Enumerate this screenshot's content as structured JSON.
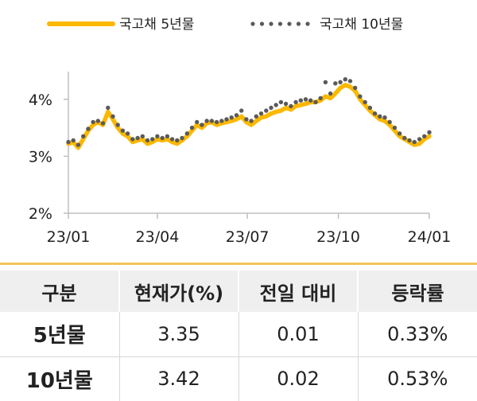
{
  "colors": {
    "series_5y": "#fbb800",
    "series_10y": "#5a5a5a",
    "axis": "#bfbfbf"
  },
  "chart_data": {
    "type": "line",
    "x_tick_labels": [
      "23/01",
      "23/04",
      "23/07",
      "23/10",
      "24/01"
    ],
    "x_tick_dates": [
      "2023-01-01",
      "2023-04-01",
      "2023-07-01",
      "2023-10-01",
      "2024-01-01"
    ],
    "y_tick_labels": [
      "2%",
      "3%",
      "4%"
    ],
    "ylim": [
      2,
      4.5
    ],
    "grid": false,
    "legend_position": "top",
    "series": [
      {
        "name": "국고채 5년물",
        "style": "solid-thick",
        "x": [
          "2023-01-01",
          "2023-01-06",
          "2023-01-11",
          "2023-01-16",
          "2023-01-21",
          "2023-01-26",
          "2023-01-31",
          "2023-02-05",
          "2023-02-10",
          "2023-02-15",
          "2023-02-20",
          "2023-02-25",
          "2023-03-02",
          "2023-03-07",
          "2023-03-12",
          "2023-03-17",
          "2023-03-22",
          "2023-03-27",
          "2023-04-01",
          "2023-04-06",
          "2023-04-11",
          "2023-04-16",
          "2023-04-21",
          "2023-04-26",
          "2023-05-01",
          "2023-05-06",
          "2023-05-11",
          "2023-05-16",
          "2023-05-21",
          "2023-05-26",
          "2023-05-31",
          "2023-06-05",
          "2023-06-10",
          "2023-06-15",
          "2023-06-20",
          "2023-06-25",
          "2023-06-30",
          "2023-07-05",
          "2023-07-10",
          "2023-07-15",
          "2023-07-20",
          "2023-07-25",
          "2023-07-30",
          "2023-08-04",
          "2023-08-09",
          "2023-08-14",
          "2023-08-19",
          "2023-08-24",
          "2023-08-29",
          "2023-09-03",
          "2023-09-08",
          "2023-09-13",
          "2023-09-18",
          "2023-09-23",
          "2023-09-28",
          "2023-10-03",
          "2023-10-08",
          "2023-10-13",
          "2023-10-18",
          "2023-10-23",
          "2023-10-28",
          "2023-11-02",
          "2023-11-07",
          "2023-11-12",
          "2023-11-17",
          "2023-11-22",
          "2023-11-27",
          "2023-12-02",
          "2023-12-07",
          "2023-12-12",
          "2023-12-17",
          "2023-12-22",
          "2023-12-27",
          "2024-01-01"
        ],
        "values": [
          3.22,
          3.25,
          3.15,
          3.3,
          3.45,
          3.55,
          3.6,
          3.55,
          3.78,
          3.65,
          3.5,
          3.4,
          3.35,
          3.25,
          3.28,
          3.3,
          3.22,
          3.25,
          3.3,
          3.28,
          3.3,
          3.25,
          3.22,
          3.28,
          3.35,
          3.45,
          3.55,
          3.5,
          3.58,
          3.6,
          3.55,
          3.58,
          3.6,
          3.62,
          3.65,
          3.7,
          3.6,
          3.55,
          3.62,
          3.68,
          3.7,
          3.75,
          3.78,
          3.8,
          3.85,
          3.82,
          3.88,
          3.9,
          3.92,
          3.95,
          3.95,
          3.98,
          4.05,
          4.02,
          4.1,
          4.2,
          4.25,
          4.22,
          4.15,
          4.0,
          3.9,
          3.8,
          3.72,
          3.65,
          3.62,
          3.55,
          3.45,
          3.35,
          3.3,
          3.25,
          3.2,
          3.22,
          3.3,
          3.35
        ]
      },
      {
        "name": "국고채 10년물",
        "style": "dotted",
        "x": [
          "2023-01-01",
          "2023-01-06",
          "2023-01-11",
          "2023-01-16",
          "2023-01-21",
          "2023-01-26",
          "2023-01-31",
          "2023-02-05",
          "2023-02-10",
          "2023-02-15",
          "2023-02-20",
          "2023-02-25",
          "2023-03-02",
          "2023-03-07",
          "2023-03-12",
          "2023-03-17",
          "2023-03-22",
          "2023-03-27",
          "2023-04-01",
          "2023-04-06",
          "2023-04-11",
          "2023-04-16",
          "2023-04-21",
          "2023-04-26",
          "2023-05-01",
          "2023-05-06",
          "2023-05-11",
          "2023-05-16",
          "2023-05-21",
          "2023-05-26",
          "2023-05-31",
          "2023-06-05",
          "2023-06-10",
          "2023-06-15",
          "2023-06-20",
          "2023-06-25",
          "2023-06-30",
          "2023-07-05",
          "2023-07-10",
          "2023-07-15",
          "2023-07-20",
          "2023-07-25",
          "2023-07-30",
          "2023-08-04",
          "2023-08-09",
          "2023-08-14",
          "2023-08-19",
          "2023-08-24",
          "2023-08-29",
          "2023-09-03",
          "2023-09-08",
          "2023-09-13",
          "2023-09-18",
          "2023-09-23",
          "2023-09-28",
          "2023-10-03",
          "2023-10-08",
          "2023-10-13",
          "2023-10-18",
          "2023-10-23",
          "2023-10-28",
          "2023-11-02",
          "2023-11-07",
          "2023-11-12",
          "2023-11-17",
          "2023-11-22",
          "2023-11-27",
          "2023-12-02",
          "2023-12-07",
          "2023-12-12",
          "2023-12-17",
          "2023-12-22",
          "2023-12-27",
          "2024-01-01"
        ],
        "values": [
          3.25,
          3.28,
          3.2,
          3.35,
          3.48,
          3.6,
          3.62,
          3.58,
          3.85,
          3.7,
          3.55,
          3.45,
          3.4,
          3.3,
          3.32,
          3.35,
          3.28,
          3.3,
          3.35,
          3.32,
          3.35,
          3.3,
          3.28,
          3.32,
          3.4,
          3.5,
          3.6,
          3.55,
          3.62,
          3.62,
          3.6,
          3.62,
          3.65,
          3.68,
          3.72,
          3.8,
          3.65,
          3.62,
          3.7,
          3.75,
          3.8,
          3.85,
          3.9,
          3.95,
          3.92,
          3.88,
          3.95,
          3.98,
          4.0,
          3.98,
          3.95,
          4.02,
          4.3,
          4.1,
          4.28,
          4.3,
          4.35,
          4.32,
          4.2,
          4.05,
          3.95,
          3.85,
          3.75,
          3.7,
          3.68,
          3.6,
          3.5,
          3.4,
          3.32,
          3.28,
          3.25,
          3.3,
          3.35,
          3.42
        ]
      }
    ]
  },
  "table": {
    "headers": [
      "구분",
      "현재가(%)",
      "전일 대비",
      "등락률"
    ],
    "rows": [
      {
        "label": "5년물",
        "price": "3.35",
        "change": "0.01",
        "rate": "0.33%"
      },
      {
        "label": "10년물",
        "price": "3.42",
        "change": "0.02",
        "rate": "0.53%"
      }
    ]
  }
}
